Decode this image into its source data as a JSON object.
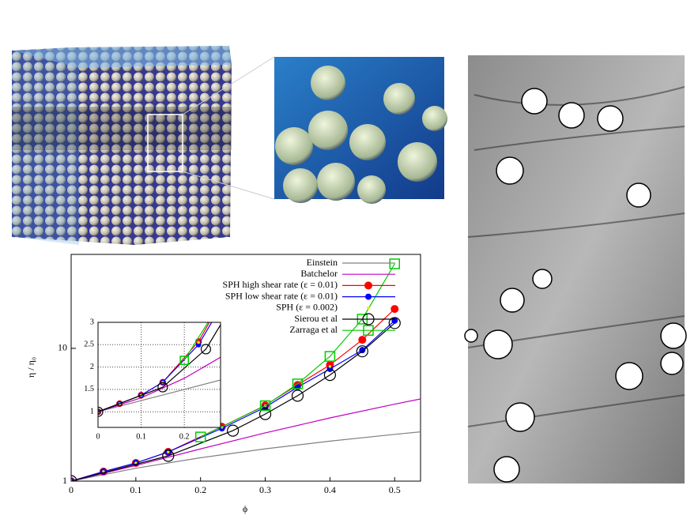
{
  "chart_data": {
    "type": "line",
    "y_label": "η / η₀",
    "x_label": "ϕ",
    "log_y": true,
    "xlim": [
      0,
      0.54
    ],
    "ylim": [
      1,
      51
    ],
    "xticks": [
      0,
      0.1,
      0.2,
      0.3,
      0.4,
      0.5
    ],
    "yticks": [
      1,
      10
    ],
    "series": [
      {
        "name": "Einstein",
        "color": "#808080",
        "marker": "none",
        "line": true,
        "x": [
          0,
          0.1,
          0.2,
          0.3,
          0.4,
          0.5,
          0.54
        ],
        "values": [
          1,
          1.25,
          1.5,
          1.75,
          2,
          2.25,
          2.35
        ]
      },
      {
        "name": "Batchelor",
        "color": "#c000c0",
        "marker": "none",
        "line": true,
        "x": [
          0,
          0.1,
          0.2,
          0.3,
          0.4,
          0.5,
          0.54
        ],
        "values": [
          1,
          1.312,
          1.748,
          2.308,
          2.992,
          3.8,
          4.158
        ]
      },
      {
        "name": "SPH high shear rate (ε = 0.01)",
        "color": "#ff0000",
        "marker": "dot",
        "line": true,
        "x": [
          0,
          0.05,
          0.1,
          0.15,
          0.233,
          0.3,
          0.35,
          0.4,
          0.45,
          0.5
        ],
        "values": [
          1,
          1.18,
          1.37,
          1.66,
          2.57,
          3.72,
          5.3,
          7.5,
          11.6,
          19.8
        ]
      },
      {
        "name": "SPH low shear rate (ε = 0.01)",
        "color": "#0000ff",
        "marker": "smalldot",
        "line": true,
        "x": [
          0,
          0.05,
          0.1,
          0.15,
          0.233,
          0.3,
          0.35,
          0.4,
          0.45,
          0.5
        ],
        "values": [
          1,
          1.18,
          1.37,
          1.66,
          2.5,
          3.6,
          5.1,
          7.0,
          9.7,
          16.2
        ]
      },
      {
        "name": "SPH (ε = 0.002)",
        "color": "#e8e800",
        "marker": "tiny",
        "line": false,
        "x": [
          0,
          0.05,
          0.1,
          0.15,
          0.233,
          0.3,
          0.4
        ],
        "values": [
          1,
          1.18,
          1.37,
          1.66,
          2.55,
          3.7,
          7.3
        ]
      },
      {
        "name": "Sierou et al",
        "color": "#000000",
        "marker": "circle",
        "line": true,
        "x": [
          0,
          0.15,
          0.25,
          0.3,
          0.35,
          0.4,
          0.45,
          0.5
        ],
        "values": [
          1,
          1.55,
          2.4,
          3.2,
          4.4,
          6.3,
          9.5,
          15.5
        ]
      },
      {
        "name": "Zarraga et al",
        "color": "#00cc00",
        "marker": "square",
        "line": true,
        "x": [
          0.2,
          0.3,
          0.35,
          0.4,
          0.45,
          0.5
        ],
        "values": [
          2.15,
          3.7,
          5.4,
          8.7,
          16.6,
          43.3
        ]
      }
    ],
    "inset": {
      "xlim": [
        0,
        0.284
      ],
      "ylim": [
        0.65,
        3
      ],
      "xticks": [
        0,
        0.1,
        0.2
      ],
      "yticks": [
        1,
        1.5,
        2,
        2.5,
        3
      ],
      "grid": true
    }
  }
}
